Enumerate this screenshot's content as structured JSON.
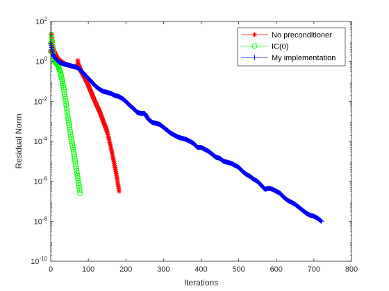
{
  "chart_data": {
    "type": "line",
    "title": "",
    "xlabel": "Iterations",
    "ylabel": "Residual Norm",
    "xlim": [
      0,
      800
    ],
    "ylim_log10": [
      -10,
      2
    ],
    "y_scale": "log",
    "x_ticks": [
      0,
      100,
      200,
      300,
      400,
      500,
      600,
      700,
      800
    ],
    "y_ticks": [
      {
        "exp": 2,
        "base": "10",
        "sup": "2"
      },
      {
        "exp": 0,
        "base": "10",
        "sup": "0"
      },
      {
        "exp": -2,
        "base": "10",
        "sup": "-2"
      },
      {
        "exp": -4,
        "base": "10",
        "sup": "-4"
      },
      {
        "exp": -6,
        "base": "10",
        "sup": "-6"
      },
      {
        "exp": -8,
        "base": "10",
        "sup": "-8"
      },
      {
        "exp": -10,
        "base": "10",
        "sup": "-10"
      }
    ],
    "grid": false,
    "legend_position": "top-right",
    "series": [
      {
        "name": "No preconditioner",
        "color": "#ff0000",
        "marker": "asterisk",
        "x": [
          0,
          2,
          4,
          6,
          10,
          20,
          30,
          40,
          50,
          60,
          70,
          72,
          75,
          80,
          90,
          100,
          110,
          120,
          130,
          140,
          150,
          160,
          170,
          175,
          182
        ],
        "y_log10": [
          0.5,
          1.35,
          1.0,
          0.7,
          0.45,
          0.1,
          -0.05,
          -0.15,
          -0.2,
          -0.25,
          -0.3,
          0.05,
          -0.2,
          -0.45,
          -0.8,
          -1.2,
          -1.65,
          -2.1,
          -2.5,
          -3.0,
          -3.5,
          -4.3,
          -5.2,
          -5.7,
          -6.5
        ]
      },
      {
        "name": "IC(0)",
        "color": "#00ff00",
        "marker": "circle",
        "x": [
          0,
          2,
          4,
          6,
          8,
          12,
          16,
          20,
          25,
          30,
          35,
          40,
          45,
          50,
          55,
          60,
          65,
          70,
          75,
          78
        ],
        "y_log10": [
          0.5,
          1.35,
          1.0,
          0.5,
          0.2,
          -0.05,
          -0.1,
          -0.25,
          -0.5,
          -0.9,
          -1.4,
          -2.0,
          -2.7,
          -3.3,
          -3.9,
          -4.4,
          -5.0,
          -5.6,
          -6.2,
          -6.6
        ]
      },
      {
        "name": "My implementation",
        "color": "#0000ff",
        "marker": "plus",
        "x": [
          0,
          3,
          6,
          10,
          20,
          30,
          40,
          50,
          60,
          70,
          80,
          90,
          100,
          110,
          120,
          130,
          140,
          150,
          160,
          170,
          180,
          190,
          200,
          210,
          220,
          230,
          240,
          250,
          260,
          270,
          280,
          290,
          300,
          310,
          320,
          330,
          340,
          350,
          360,
          370,
          380,
          390,
          400,
          410,
          420,
          430,
          440,
          450,
          460,
          470,
          480,
          490,
          500,
          510,
          520,
          530,
          540,
          550,
          560,
          570,
          580,
          590,
          600,
          610,
          620,
          630,
          640,
          650,
          660,
          670,
          680,
          690,
          700,
          710,
          720
        ],
        "y_log10": [
          0.9,
          0.6,
          0.35,
          0.2,
          0.0,
          -0.1,
          -0.15,
          -0.2,
          -0.25,
          -0.3,
          -0.45,
          -0.65,
          -0.85,
          -1.05,
          -1.25,
          -1.4,
          -1.5,
          -1.55,
          -1.6,
          -1.7,
          -1.75,
          -1.85,
          -2.0,
          -2.2,
          -2.35,
          -2.55,
          -2.6,
          -2.6,
          -2.9,
          -3.05,
          -3.1,
          -3.15,
          -3.3,
          -3.45,
          -3.6,
          -3.7,
          -3.8,
          -3.85,
          -3.9,
          -4.0,
          -4.1,
          -4.3,
          -4.3,
          -4.4,
          -4.5,
          -4.65,
          -4.8,
          -4.85,
          -5.0,
          -5.05,
          -5.1,
          -5.2,
          -5.3,
          -5.5,
          -5.65,
          -5.75,
          -5.9,
          -6.0,
          -6.2,
          -6.4,
          -6.35,
          -6.4,
          -6.5,
          -6.6,
          -6.8,
          -6.95,
          -7.05,
          -7.15,
          -7.3,
          -7.45,
          -7.6,
          -7.7,
          -7.75,
          -7.85,
          -8.0
        ]
      }
    ]
  }
}
